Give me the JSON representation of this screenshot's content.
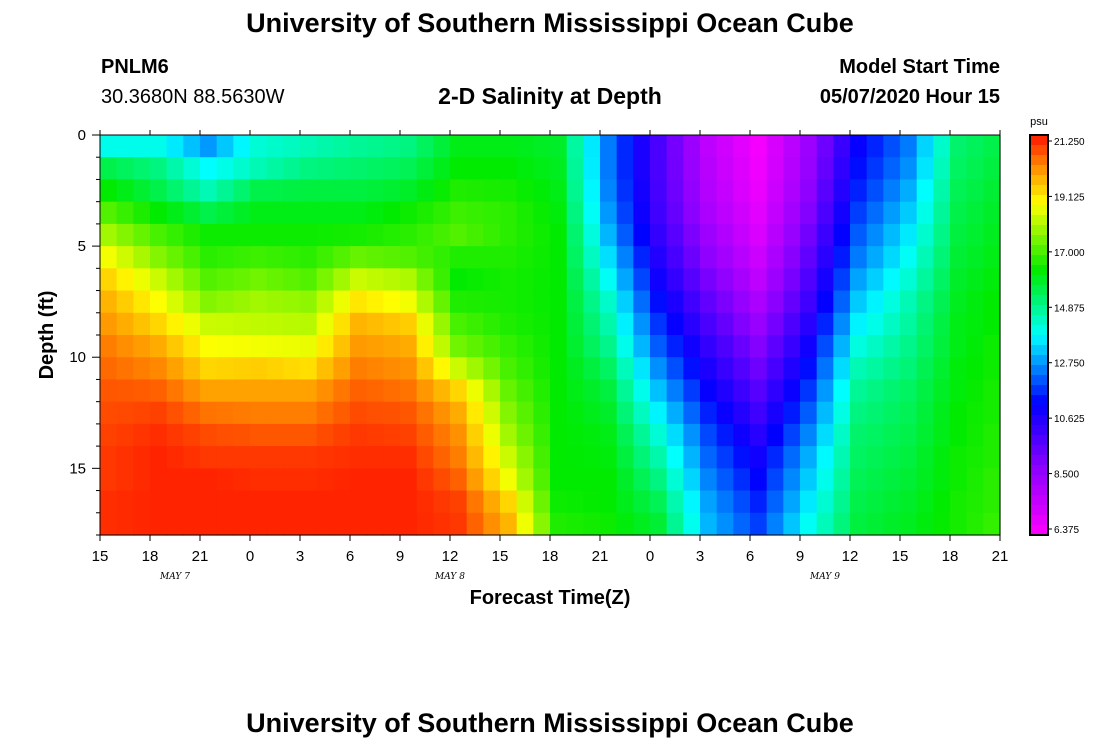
{
  "header": {
    "title": "University of Southern Mississippi Ocean Cube",
    "station": "PNLM6",
    "coordinates": "30.3680N 88.5630W",
    "subtitle": "2-D Salinity at Depth",
    "model_start_label": "Model Start Time",
    "model_start_value": "05/07/2020 Hour 15"
  },
  "footer": {
    "title": "University of Southern Mississippi Ocean Cube"
  },
  "chart_data": {
    "type": "heatmap",
    "title": "2-D Salinity at Depth",
    "xlabel": "Forecast Time(Z)",
    "ylabel": "Depth (ft)",
    "x_tick_labels": [
      "15",
      "18",
      "21",
      "0",
      "3",
      "6",
      "9",
      "12",
      "15",
      "18",
      "21",
      "0",
      "3",
      "6",
      "9",
      "12",
      "15",
      "18",
      "21"
    ],
    "y_ticks": [
      0,
      5,
      10,
      15
    ],
    "ylim": [
      0,
      18
    ],
    "date_labels": [
      {
        "label": "MAY 7",
        "tick_index": 1.5
      },
      {
        "label": "MAY 8",
        "tick_index": 7
      },
      {
        "label": "MAY 9",
        "tick_index": 14.5
      }
    ],
    "colorbar": {
      "unit": "psu",
      "ticks": [
        "21.250",
        "19.125",
        "17.000",
        "14.875",
        "12.750",
        "10.625",
        "8.500",
        "6.375"
      ],
      "range": [
        6.375,
        21.25
      ]
    },
    "grid_cols": 54,
    "grid_rows": 18,
    "key_columns": [
      0,
      3,
      6,
      9,
      12,
      15,
      18,
      21,
      24,
      27,
      30,
      33,
      36,
      39,
      42,
      45,
      48,
      51,
      53
    ],
    "salinity_profiles": [
      [
        14.0,
        15.5,
        16.2,
        17.0,
        17.8,
        18.6,
        19.2,
        19.6,
        19.9,
        20.2,
        20.4,
        20.6,
        20.7,
        20.8,
        20.9,
        20.9,
        21.0,
        21.0
      ],
      [
        14.0,
        15.0,
        15.5,
        16.2,
        16.9,
        17.5,
        18.2,
        18.7,
        19.2,
        19.7,
        20.1,
        20.5,
        20.8,
        21.0,
        21.1,
        21.1,
        21.1,
        21.1
      ],
      [
        12.8,
        13.8,
        14.5,
        15.5,
        16.3,
        16.6,
        17.0,
        17.5,
        18.2,
        18.7,
        19.2,
        19.8,
        20.3,
        20.7,
        20.9,
        21.1,
        21.1,
        21.1
      ],
      [
        14.2,
        14.5,
        15.5,
        16.0,
        16.3,
        16.8,
        17.3,
        17.8,
        18.1,
        18.6,
        19.3,
        19.8,
        20.2,
        20.6,
        20.9,
        21.0,
        21.1,
        21.1
      ],
      [
        14.5,
        15.0,
        15.6,
        16.0,
        16.3,
        16.6,
        17.0,
        17.6,
        18.0,
        18.5,
        19.1,
        19.8,
        20.2,
        20.6,
        20.9,
        21.0,
        21.1,
        21.1
      ],
      [
        14.8,
        15.2,
        15.6,
        16.0,
        16.4,
        17.2,
        18.2,
        19.0,
        19.6,
        19.9,
        20.2,
        20.5,
        20.7,
        20.9,
        21.0,
        21.1,
        21.1,
        21.1
      ],
      [
        15.0,
        15.4,
        15.8,
        16.3,
        16.6,
        17.0,
        17.9,
        18.6,
        19.3,
        19.7,
        20.0,
        20.3,
        20.6,
        20.8,
        21.0,
        21.1,
        21.1,
        21.1
      ],
      [
        16.0,
        16.2,
        16.5,
        16.8,
        17.0,
        16.5,
        16.2,
        16.5,
        16.9,
        17.3,
        18.2,
        19.2,
        19.7,
        20.0,
        20.2,
        20.5,
        20.8,
        20.9
      ],
      [
        16.0,
        16.2,
        16.4,
        16.6,
        16.6,
        16.5,
        16.4,
        16.4,
        16.5,
        16.7,
        16.9,
        17.2,
        17.5,
        17.8,
        18.2,
        18.6,
        19.2,
        19.6
      ],
      [
        15.8,
        15.9,
        16.0,
        16.1,
        16.2,
        16.2,
        16.2,
        16.2,
        16.2,
        16.2,
        16.2,
        16.2,
        16.2,
        16.2,
        16.2,
        16.2,
        16.3,
        16.5
      ],
      [
        12.5,
        12.5,
        12.6,
        12.8,
        13.1,
        13.5,
        13.9,
        14.3,
        14.6,
        14.9,
        15.3,
        15.6,
        15.8,
        16.0,
        16.1,
        16.2,
        16.2,
        16.3
      ],
      [
        10.0,
        10.0,
        10.1,
        10.2,
        10.4,
        10.7,
        11.0,
        11.4,
        11.8,
        12.2,
        12.7,
        13.2,
        13.7,
        14.2,
        14.6,
        15.0,
        15.4,
        15.7
      ],
      [
        7.8,
        7.9,
        8.0,
        8.2,
        8.5,
        8.8,
        9.2,
        9.6,
        10.0,
        10.4,
        10.8,
        11.2,
        11.6,
        12.0,
        12.3,
        12.6,
        12.9,
        13.1
      ],
      [
        6.6,
        6.7,
        6.8,
        7.0,
        7.2,
        7.5,
        7.8,
        8.2,
        8.6,
        9.0,
        9.4,
        9.8,
        10.2,
        10.6,
        11.0,
        11.3,
        11.6,
        11.9
      ],
      [
        8.5,
        8.6,
        8.8,
        9.0,
        9.3,
        9.6,
        9.9,
        10.2,
        10.6,
        11.0,
        11.4,
        11.8,
        12.2,
        12.6,
        13.0,
        13.3,
        13.6,
        13.9
      ],
      [
        11.2,
        11.4,
        11.6,
        11.9,
        12.2,
        12.5,
        12.9,
        13.3,
        13.7,
        14.1,
        14.5,
        14.8,
        15.0,
        15.2,
        15.3,
        15.4,
        15.5,
        15.6
      ],
      [
        12.5,
        12.7,
        13.0,
        13.3,
        13.6,
        13.9,
        14.2,
        14.5,
        14.7,
        14.9,
        15.1,
        15.3,
        15.4,
        15.5,
        15.6,
        15.7,
        15.8,
        15.9
      ],
      [
        15.2,
        15.3,
        15.4,
        15.5,
        15.6,
        15.7,
        15.8,
        15.9,
        16.0,
        16.0,
        16.1,
        16.1,
        16.2,
        16.2,
        16.3,
        16.3,
        16.4,
        16.4
      ],
      [
        15.5,
        15.6,
        15.7,
        15.8,
        15.9,
        16.0,
        16.1,
        16.2,
        16.2,
        16.3,
        16.3,
        16.4,
        16.4,
        16.5,
        16.5,
        16.6,
        16.6,
        16.7
      ]
    ]
  }
}
